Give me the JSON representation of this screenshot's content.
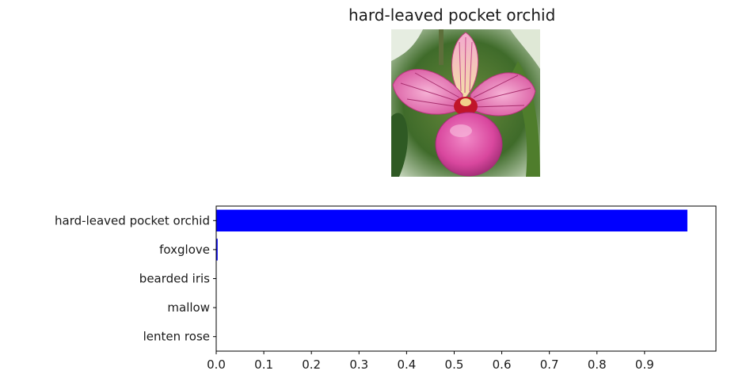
{
  "figure": {
    "title": "hard-leaved pocket orchid",
    "image_subject": "pink slipper orchid flower"
  },
  "colors": {
    "bar": "#0000ff",
    "axis": "#000000",
    "text": "#1a1a1a"
  },
  "chart_data": {
    "type": "bar",
    "orientation": "horizontal",
    "categories": [
      "hard-leaved pocket orchid",
      "foxglove",
      "bearded iris",
      "mallow",
      "lenten rose"
    ],
    "values": [
      0.99,
      0.003,
      0.0008,
      0.0005,
      0.0003
    ],
    "xlim": [
      0.0,
      1.05
    ],
    "xticks": [
      0.0,
      0.1,
      0.2,
      0.3,
      0.4,
      0.5,
      0.6,
      0.7,
      0.8,
      0.9
    ],
    "xtick_labels": [
      "0.0",
      "0.1",
      "0.2",
      "0.3",
      "0.4",
      "0.5",
      "0.6",
      "0.7",
      "0.8",
      "0.9"
    ],
    "title": "",
    "xlabel": "",
    "ylabel": "",
    "grid": false,
    "legend": "none"
  }
}
